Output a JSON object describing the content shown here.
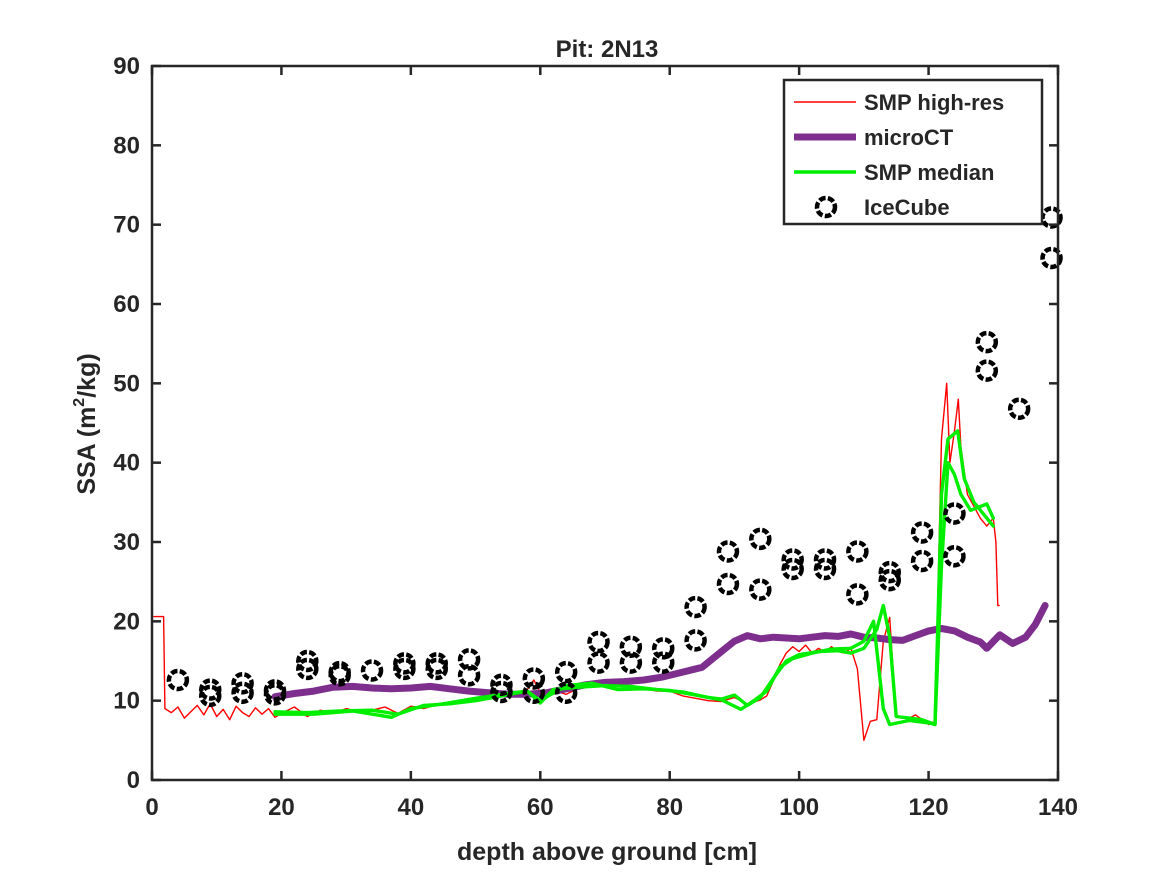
{
  "chart_data": {
    "type": "line",
    "title": "Pit: 2N13",
    "xlabel": "depth above ground [cm]",
    "ylabel": {
      "prefix": "SSA (m",
      "superscript": "2",
      "suffix": "/kg)"
    },
    "xlim": [
      0,
      140
    ],
    "ylim": [
      0,
      90
    ],
    "xticks": [
      "0",
      "20",
      "40",
      "60",
      "80",
      "100",
      "120",
      "140"
    ],
    "yticks": [
      "0",
      "10",
      "20",
      "30",
      "40",
      "50",
      "60",
      "70",
      "80",
      "90"
    ],
    "grid": false,
    "legend_position": "top-right",
    "series": [
      {
        "name": "SMP high-res",
        "color": "#ff0000",
        "style": "thin-line",
        "points": [
          [
            0.3,
            20.6
          ],
          [
            1.8,
            20.6
          ],
          [
            2.0,
            9.0
          ],
          [
            3,
            8.5
          ],
          [
            4,
            9.2
          ],
          [
            5,
            7.8
          ],
          [
            6,
            8.6
          ],
          [
            7,
            9.4
          ],
          [
            8,
            8.2
          ],
          [
            9,
            9.6
          ],
          [
            10,
            8.0
          ],
          [
            11,
            8.9
          ],
          [
            12,
            7.6
          ],
          [
            13,
            9.3
          ],
          [
            14,
            8.5
          ],
          [
            15,
            8.0
          ],
          [
            16,
            9.1
          ],
          [
            17,
            8.3
          ],
          [
            18,
            9.0
          ],
          [
            19,
            7.9
          ],
          [
            20,
            8.4
          ],
          [
            22,
            9.2
          ],
          [
            24,
            8.0
          ],
          [
            26,
            8.8
          ],
          [
            28,
            8.4
          ],
          [
            30,
            9.0
          ],
          [
            32,
            8.6
          ],
          [
            34,
            8.8
          ],
          [
            36,
            9.2
          ],
          [
            38,
            8.4
          ],
          [
            40,
            9.3
          ],
          [
            42,
            9.0
          ],
          [
            44,
            9.5
          ],
          [
            46,
            9.6
          ],
          [
            48,
            9.9
          ],
          [
            50,
            10.2
          ],
          [
            52,
            10.6
          ],
          [
            54,
            10.8
          ],
          [
            56,
            11.0
          ],
          [
            58,
            11.4
          ],
          [
            59,
            12.6
          ],
          [
            60,
            11.0
          ],
          [
            62,
            11.3
          ],
          [
            64,
            10.8
          ],
          [
            66,
            11.6
          ],
          [
            68,
            12.2
          ],
          [
            70,
            11.8
          ],
          [
            72,
            12.1
          ],
          [
            74,
            11.6
          ],
          [
            76,
            11.5
          ],
          [
            78,
            11.2
          ],
          [
            80,
            11.2
          ],
          [
            82,
            10.6
          ],
          [
            84,
            10.3
          ],
          [
            86,
            10.0
          ],
          [
            88,
            9.9
          ],
          [
            90,
            10.4
          ],
          [
            92,
            9.6
          ],
          [
            94,
            10.1
          ],
          [
            95,
            10.6
          ],
          [
            96,
            12.5
          ],
          [
            97,
            14.5
          ],
          [
            98,
            16.0
          ],
          [
            99,
            16.8
          ],
          [
            100,
            16.2
          ],
          [
            101,
            17.0
          ],
          [
            102,
            16.0
          ],
          [
            103,
            16.6
          ],
          [
            104,
            16.1
          ],
          [
            105,
            16.8
          ],
          [
            106,
            16.2
          ],
          [
            107,
            16.0
          ],
          [
            108,
            16.6
          ],
          [
            109,
            14.0
          ],
          [
            110,
            5.0
          ],
          [
            111,
            7.4
          ],
          [
            112,
            7.6
          ],
          [
            113,
            17.5
          ],
          [
            114,
            20.5
          ],
          [
            115,
            8.0
          ],
          [
            116,
            7.8
          ],
          [
            117,
            7.8
          ],
          [
            118,
            8.2
          ],
          [
            119,
            7.6
          ],
          [
            120,
            7.0
          ],
          [
            121,
            7.4
          ],
          [
            122,
            43.0
          ],
          [
            122.8,
            50.0
          ],
          [
            123.3,
            40.0
          ],
          [
            124,
            44.0
          ],
          [
            124.6,
            48.0
          ],
          [
            125,
            42.0
          ],
          [
            126,
            36.0
          ],
          [
            127,
            34.5
          ],
          [
            128,
            33.0
          ],
          [
            129,
            32.0
          ],
          [
            130,
            33.0
          ],
          [
            130.4,
            30.0
          ],
          [
            130.7,
            22.0
          ],
          [
            130.9,
            22.0
          ]
        ]
      },
      {
        "name": "microCT",
        "color": "#7e2f8e",
        "style": "thick-line",
        "points": [
          [
            19,
            10.5
          ],
          [
            22,
            10.9
          ],
          [
            25,
            11.2
          ],
          [
            28,
            11.7
          ],
          [
            31,
            11.8
          ],
          [
            34,
            11.6
          ],
          [
            37,
            11.5
          ],
          [
            40,
            11.6
          ],
          [
            43,
            11.8
          ],
          [
            46,
            11.5
          ],
          [
            49,
            11.2
          ],
          [
            52,
            11.0
          ],
          [
            55,
            10.8
          ],
          [
            58,
            10.8
          ],
          [
            61,
            11.0
          ],
          [
            64,
            11.5
          ],
          [
            67,
            12.0
          ],
          [
            70,
            12.3
          ],
          [
            73,
            12.4
          ],
          [
            76,
            12.6
          ],
          [
            79,
            13.0
          ],
          [
            82,
            13.6
          ],
          [
            85,
            14.2
          ],
          [
            88,
            16.2
          ],
          [
            90,
            17.5
          ],
          [
            92,
            18.2
          ],
          [
            94,
            17.8
          ],
          [
            96,
            18.0
          ],
          [
            98,
            17.9
          ],
          [
            100,
            17.8
          ],
          [
            102,
            18.0
          ],
          [
            104,
            18.2
          ],
          [
            106,
            18.1
          ],
          [
            108,
            18.4
          ],
          [
            110,
            18.0
          ],
          [
            112,
            17.9
          ],
          [
            114,
            17.7
          ],
          [
            116,
            17.6
          ],
          [
            118,
            18.2
          ],
          [
            120,
            18.8
          ],
          [
            122,
            19.1
          ],
          [
            124,
            18.8
          ],
          [
            126,
            18.0
          ],
          [
            128,
            17.4
          ],
          [
            129,
            16.6
          ],
          [
            131,
            18.3
          ],
          [
            133,
            17.2
          ],
          [
            135,
            18.0
          ],
          [
            136.5,
            19.6
          ],
          [
            138,
            22.0
          ]
        ]
      },
      {
        "name": "SMP median",
        "color": "#00ee00",
        "style": "medium-line",
        "points": [
          [
            19,
            8.6
          ],
          [
            24,
            8.5
          ],
          [
            29,
            8.7
          ],
          [
            34,
            8.8
          ],
          [
            38,
            8.3
          ],
          [
            42,
            9.4
          ],
          [
            46,
            9.6
          ],
          [
            50,
            10.0
          ],
          [
            54,
            10.6
          ],
          [
            58,
            11.2
          ],
          [
            60,
            9.7
          ],
          [
            62,
            11.4
          ],
          [
            66,
            11.7
          ],
          [
            70,
            11.9
          ],
          [
            74,
            11.8
          ],
          [
            78,
            11.4
          ],
          [
            82,
            11.1
          ],
          [
            86,
            10.4
          ],
          [
            88,
            10.2
          ],
          [
            90,
            10.7
          ],
          [
            92,
            9.4
          ],
          [
            94,
            10.4
          ],
          [
            96,
            12.8
          ],
          [
            98,
            15.0
          ],
          [
            100,
            15.8
          ],
          [
            103,
            16.2
          ],
          [
            106,
            16.3
          ],
          [
            108,
            16.0
          ],
          [
            110,
            16.6
          ],
          [
            112,
            19.0
          ],
          [
            113,
            22.0
          ],
          [
            114,
            18.0
          ],
          [
            115,
            8.0
          ],
          [
            117,
            7.8
          ],
          [
            119,
            7.6
          ],
          [
            121,
            7.0
          ],
          [
            122,
            36.0
          ],
          [
            123,
            43.0
          ],
          [
            124.5,
            44.0
          ],
          [
            125.5,
            38.0
          ],
          [
            127,
            35.0
          ],
          [
            130,
            32.0
          ]
        ]
      },
      {
        "name": "SMP median",
        "color": "#00ee00",
        "style": "medium-line",
        "points": [
          [
            19,
            8.3
          ],
          [
            25,
            8.3
          ],
          [
            31,
            8.7
          ],
          [
            37,
            7.9
          ],
          [
            40,
            9.0
          ],
          [
            45,
            9.6
          ],
          [
            50,
            10.3
          ],
          [
            55,
            10.9
          ],
          [
            58,
            11.2
          ],
          [
            60,
            10.0
          ],
          [
            64,
            11.9
          ],
          [
            68,
            12.2
          ],
          [
            72,
            11.4
          ],
          [
            76,
            11.5
          ],
          [
            80,
            11.3
          ],
          [
            84,
            10.7
          ],
          [
            88,
            10.1
          ],
          [
            91,
            8.9
          ],
          [
            93,
            10.0
          ],
          [
            95,
            11.2
          ],
          [
            97,
            14.2
          ],
          [
            99,
            15.3
          ],
          [
            102,
            16.0
          ],
          [
            105,
            16.5
          ],
          [
            108,
            16.6
          ],
          [
            110,
            17.5
          ],
          [
            111.5,
            20.0
          ],
          [
            113,
            9.0
          ],
          [
            114,
            7.0
          ],
          [
            117,
            7.5
          ],
          [
            120,
            7.2
          ],
          [
            121,
            7.0
          ],
          [
            122,
            27.0
          ],
          [
            123,
            40.0
          ],
          [
            124,
            38.5
          ],
          [
            125,
            36.0
          ],
          [
            126.5,
            34.0
          ],
          [
            129,
            34.8
          ],
          [
            130,
            33.0
          ]
        ]
      },
      {
        "name": "IceCube",
        "color": "#000000",
        "style": "open-circles",
        "points": [
          [
            4,
            12.6
          ],
          [
            9,
            10.6
          ],
          [
            9,
            11.4
          ],
          [
            14,
            11.0
          ],
          [
            14,
            12.2
          ],
          [
            19,
            10.8
          ],
          [
            19,
            11.3
          ],
          [
            24,
            14.0
          ],
          [
            24,
            15.0
          ],
          [
            29,
            13.6
          ],
          [
            29,
            13.2
          ],
          [
            34,
            13.8
          ],
          [
            39,
            14.0
          ],
          [
            39,
            14.7
          ],
          [
            44,
            14.0
          ],
          [
            44,
            14.7
          ],
          [
            49,
            13.2
          ],
          [
            49,
            15.2
          ],
          [
            54,
            11.1
          ],
          [
            54,
            12.0
          ],
          [
            59,
            11.0
          ],
          [
            59,
            12.8
          ],
          [
            64,
            11.0
          ],
          [
            64,
            13.6
          ],
          [
            69,
            14.8
          ],
          [
            69,
            17.4
          ],
          [
            74,
            14.8
          ],
          [
            74,
            16.8
          ],
          [
            79,
            14.8
          ],
          [
            79,
            16.6
          ],
          [
            84,
            17.6
          ],
          [
            84,
            21.8
          ],
          [
            89,
            24.7
          ],
          [
            89,
            28.8
          ],
          [
            94,
            24.0
          ],
          [
            94,
            30.4
          ],
          [
            99,
            26.6
          ],
          [
            99,
            27.8
          ],
          [
            104,
            26.6
          ],
          [
            104,
            27.8
          ],
          [
            109,
            23.4
          ],
          [
            109,
            28.8
          ],
          [
            114,
            25.2
          ],
          [
            114,
            26.2
          ],
          [
            119,
            27.6
          ],
          [
            119,
            31.2
          ],
          [
            124,
            28.2
          ],
          [
            124,
            33.6
          ],
          [
            129,
            51.6
          ],
          [
            129,
            55.2
          ],
          [
            134,
            46.8
          ],
          [
            139,
            65.8
          ],
          [
            139,
            70.9
          ]
        ]
      }
    ],
    "legend": [
      {
        "label": "SMP high-res",
        "color": "#ff0000",
        "style": "thin-line"
      },
      {
        "label": "microCT",
        "color": "#7e2f8e",
        "style": "thick-line"
      },
      {
        "label": "SMP median",
        "color": "#00ee00",
        "style": "medium-line"
      },
      {
        "label": "IceCube",
        "color": "#000000",
        "style": "open-circles"
      }
    ]
  }
}
